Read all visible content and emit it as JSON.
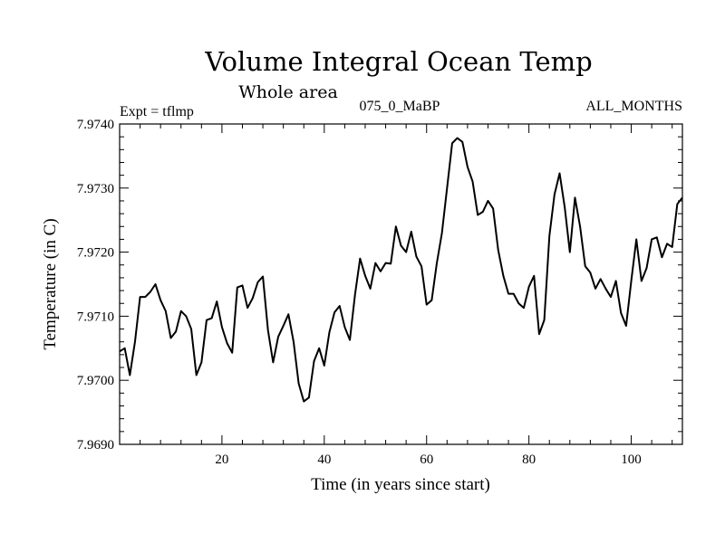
{
  "chart_data": {
    "type": "line",
    "title": "Volume Integral Ocean Temp",
    "subtitle": "Whole area",
    "left_note": "Expt = tflmp",
    "center_note": "075_0_MaBP",
    "right_note": "ALL_MONTHS",
    "xlabel": "Time (in years since start)",
    "ylabel": "Temperature (in C)",
    "xlim": [
      0,
      110
    ],
    "ylim": [
      7.969,
      7.974
    ],
    "xticks": [
      20,
      40,
      60,
      80,
      100
    ],
    "xtick_labels": [
      "20",
      "40",
      "60",
      "80",
      "100"
    ],
    "yticks": [
      7.969,
      7.97,
      7.971,
      7.972,
      7.973,
      7.974
    ],
    "ytick_labels": [
      "7.9690",
      "7.9700",
      "7.9710",
      "7.9720",
      "7.9730",
      "7.9740"
    ],
    "series": [
      {
        "name": "Volume Integral Ocean Temp",
        "color": "#000000",
        "x": [
          0,
          1,
          2,
          3,
          4,
          5,
          6,
          7,
          8,
          9,
          10,
          11,
          12,
          13,
          14,
          15,
          16,
          17,
          18,
          19,
          20,
          21,
          22,
          23,
          24,
          25,
          26,
          27,
          28,
          29,
          30,
          31,
          32,
          33,
          34,
          35,
          36,
          37,
          38,
          39,
          40,
          41,
          42,
          43,
          44,
          45,
          46,
          47,
          48,
          49,
          50,
          51,
          52,
          53,
          54,
          55,
          56,
          57,
          58,
          59,
          60,
          61,
          62,
          63,
          64,
          65,
          66,
          67,
          68,
          69,
          70,
          71,
          72,
          73,
          74,
          75,
          76,
          77,
          78,
          79,
          80,
          81,
          82,
          83,
          84,
          85,
          86,
          87,
          88,
          89,
          90,
          91,
          92,
          93,
          94,
          95,
          96,
          97,
          98,
          99,
          100,
          101,
          102,
          103,
          104,
          105,
          106,
          107,
          108,
          109,
          110
        ],
        "values": [
          7.97045,
          7.9705,
          7.97008,
          7.9706,
          7.9713,
          7.9713,
          7.97138,
          7.9715,
          7.97125,
          7.97108,
          7.97066,
          7.97076,
          7.97108,
          7.971,
          7.9708,
          7.97008,
          7.97028,
          7.97094,
          7.97097,
          7.97123,
          7.97083,
          7.97058,
          7.97043,
          7.97145,
          7.97148,
          7.97113,
          7.97128,
          7.97153,
          7.97162,
          7.97078,
          7.97028,
          7.97068,
          7.97085,
          7.97103,
          7.9706,
          7.96995,
          7.96967,
          7.96973,
          7.9703,
          7.9705,
          7.97023,
          7.97075,
          7.97106,
          7.97116,
          7.97083,
          7.97063,
          7.97133,
          7.9719,
          7.97163,
          7.97143,
          7.97183,
          7.9717,
          7.97183,
          7.97182,
          7.9724,
          7.9721,
          7.972,
          7.97232,
          7.97193,
          7.97178,
          7.97118,
          7.97125,
          7.97183,
          7.9723,
          7.973,
          7.9737,
          7.97378,
          7.97372,
          7.97333,
          7.9731,
          7.97258,
          7.97263,
          7.9728,
          7.97268,
          7.97203,
          7.97163,
          7.97135,
          7.97135,
          7.9712,
          7.97113,
          7.97146,
          7.97163,
          7.97072,
          7.97094,
          7.97225,
          7.9729,
          7.97323,
          7.9727,
          7.972,
          7.97285,
          7.9724,
          7.97178,
          7.97168,
          7.97143,
          7.97158,
          7.97143,
          7.9713,
          7.97155,
          7.97105,
          7.97085,
          7.97155,
          7.9722,
          7.97155,
          7.97175,
          7.9722,
          7.97223,
          7.97192,
          7.97213,
          7.97208,
          7.97275,
          7.97285
        ]
      }
    ]
  }
}
